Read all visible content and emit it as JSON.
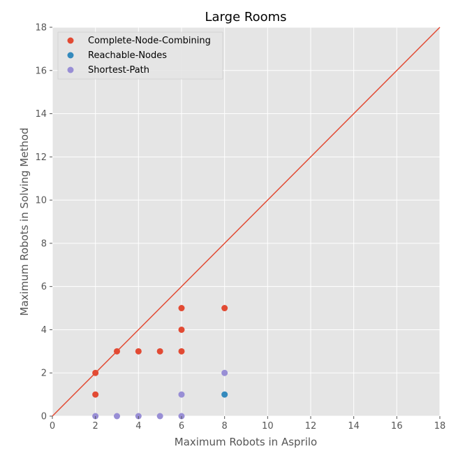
{
  "chart_data": {
    "type": "scatter",
    "title": "Large Rooms",
    "xlabel": "Maximum Robots in Asprilo",
    "ylabel": "Maximum Robots in Solving Method",
    "xlim": [
      0,
      18
    ],
    "ylim": [
      0,
      18
    ],
    "xticks": [
      0,
      2,
      4,
      6,
      8,
      10,
      12,
      14,
      16,
      18
    ],
    "yticks": [
      0,
      2,
      4,
      6,
      8,
      10,
      12,
      14,
      16,
      18
    ],
    "grid": true,
    "background": "#e5e5e5",
    "legend_position": "top-left",
    "reference_line": {
      "from": [
        0,
        0
      ],
      "to": [
        18,
        18
      ],
      "color": "#e24a33"
    },
    "series": [
      {
        "name": "Complete-Node-Combining",
        "color": "#e24a33",
        "points": [
          [
            2,
            2
          ],
          [
            2,
            1
          ],
          [
            3,
            3
          ],
          [
            4,
            3
          ],
          [
            5,
            3
          ],
          [
            6,
            5
          ],
          [
            6,
            4
          ],
          [
            6,
            3
          ],
          [
            8,
            5
          ]
        ]
      },
      {
        "name": "Reachable-Nodes",
        "color": "#348abd",
        "points": [
          [
            8,
            1
          ]
        ]
      },
      {
        "name": "Shortest-Path",
        "color": "#988ed5",
        "points": [
          [
            2,
            0
          ],
          [
            3,
            0
          ],
          [
            4,
            0
          ],
          [
            5,
            0
          ],
          [
            6,
            0
          ],
          [
            6,
            1
          ],
          [
            8,
            2
          ]
        ]
      }
    ]
  }
}
